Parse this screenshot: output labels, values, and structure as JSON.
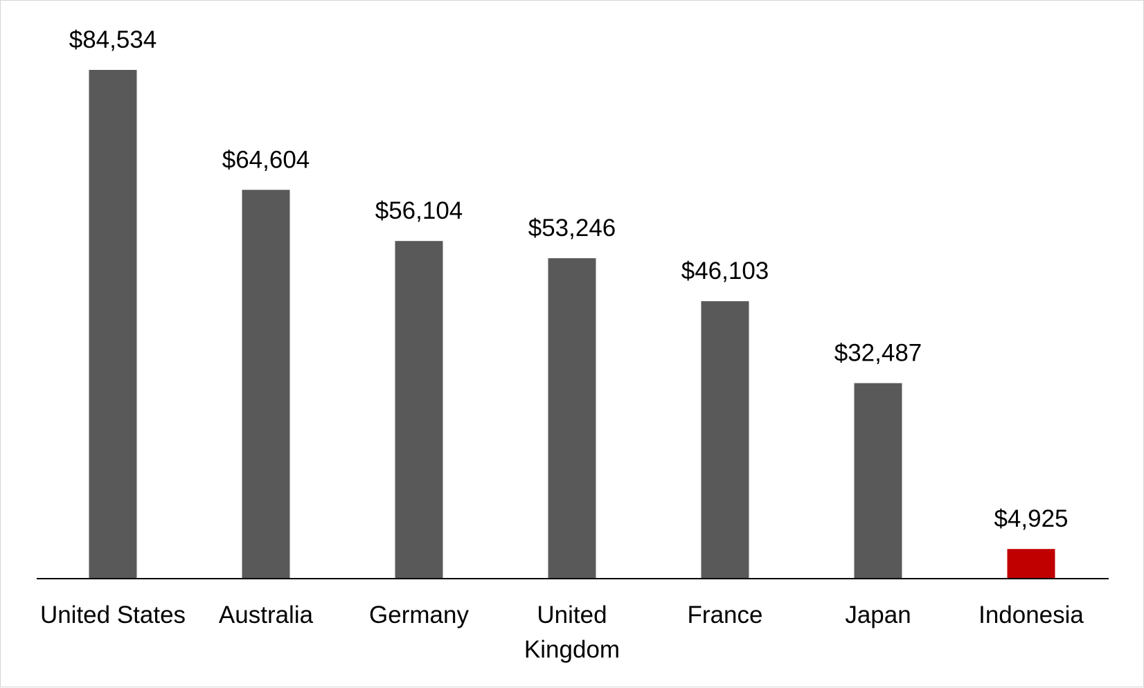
{
  "chart_data": {
    "type": "bar",
    "categories": [
      "United States",
      "Australia",
      "Germany",
      "United Kingdom",
      "France",
      "Japan",
      "Indonesia"
    ],
    "category_label_lines": [
      [
        "United States"
      ],
      [
        "Australia"
      ],
      [
        "Germany"
      ],
      [
        "United",
        "Kingdom"
      ],
      [
        "France"
      ],
      [
        "Japan"
      ],
      [
        "Indonesia"
      ]
    ],
    "values": [
      84534,
      64604,
      56104,
      53246,
      46103,
      32487,
      4925
    ],
    "data_labels": [
      "$84,534",
      "$64,604",
      "$56,104",
      "$53,246",
      "$46,103",
      "$32,487",
      "$4,925"
    ],
    "bar_colors": [
      "#595959",
      "#595959",
      "#595959",
      "#595959",
      "#595959",
      "#595959",
      "#c00000"
    ],
    "title": "",
    "xlabel": "",
    "ylabel": "",
    "ylim": [
      0,
      84534
    ],
    "grid": false,
    "legend": "none"
  },
  "colors": {
    "bar_default": "#595959",
    "bar_highlight": "#c00000",
    "axis_line": "#000000",
    "frame_border": "#d4d4d4"
  }
}
